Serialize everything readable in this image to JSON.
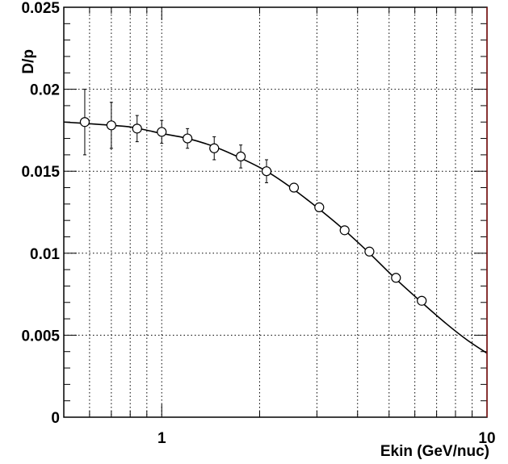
{
  "chart_data": {
    "type": "scatter",
    "title": "",
    "xlabel": "Ekin (GeV/nuc)",
    "ylabel": "D/p",
    "x_scale": "log",
    "xlim": [
      0.5,
      10
    ],
    "ylim": [
      0,
      0.025
    ],
    "grid": true,
    "x_tick_labels": [
      "1",
      "10"
    ],
    "y_tick_labels": [
      "0",
      "0.005",
      "0.01",
      "0.015",
      "0.02",
      "0.025"
    ],
    "colors": {
      "frame": "#000000",
      "grid": "#000000",
      "right_edge": "#8b1a1a"
    },
    "series": [
      {
        "style": "markers",
        "marker": "open-circle",
        "x": [
          0.58,
          0.7,
          0.84,
          1.0,
          1.2,
          1.45,
          1.75,
          2.1,
          2.55,
          3.05,
          3.65,
          4.35,
          5.25,
          6.3
        ],
        "y": [
          0.018,
          0.0178,
          0.0176,
          0.0174,
          0.017,
          0.0164,
          0.0159,
          0.015,
          0.014,
          0.0128,
          0.0114,
          0.0101,
          0.0085,
          0.0071
        ],
        "yerr": [
          0.002,
          0.0014,
          0.0008,
          0.0007,
          0.0006,
          0.0007,
          0.0007,
          0.0007,
          0,
          0,
          0,
          0,
          0,
          0
        ]
      },
      {
        "style": "line",
        "x": [
          0.5,
          0.6,
          0.7,
          0.8,
          0.9,
          1.0,
          1.2,
          1.45,
          1.75,
          2.1,
          2.5,
          3.0,
          3.6,
          4.3,
          5.2,
          6.3,
          7.5,
          8.7,
          10.0
        ],
        "y": [
          0.018,
          0.0179,
          0.0178,
          0.0177,
          0.0175,
          0.0173,
          0.017,
          0.0165,
          0.0158,
          0.015,
          0.014,
          0.0128,
          0.0115,
          0.0101,
          0.0085,
          0.007,
          0.0057,
          0.0047,
          0.0039
        ]
      }
    ]
  }
}
